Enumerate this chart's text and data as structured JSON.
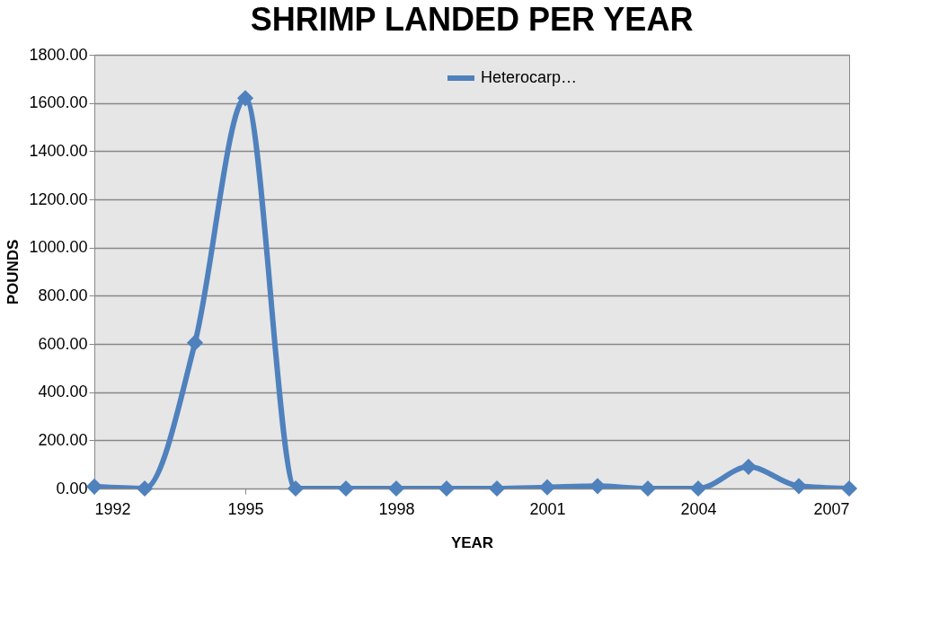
{
  "chart_data": {
    "type": "line",
    "title": "SHRIMP LANDED PER YEAR",
    "xlabel": "YEAR",
    "ylabel": "POUNDS",
    "x": [
      1992,
      1993,
      1994,
      1995,
      1996,
      1997,
      1998,
      1999,
      2000,
      2001,
      2002,
      2003,
      2004,
      2005,
      2006,
      2007
    ],
    "series": [
      {
        "name": "Heterocarp…",
        "color": "#4f81bd",
        "values": [
          8,
          0,
          605,
          1620,
          0,
          0,
          0,
          0,
          0,
          5,
          10,
          0,
          0,
          90,
          10,
          0
        ]
      }
    ],
    "xlim": [
      1992,
      2007
    ],
    "xticks": [
      1992,
      1995,
      1998,
      2001,
      2004,
      2007
    ],
    "ylim": [
      0,
      1800
    ],
    "yticks": [
      {
        "value": 0,
        "label": "0.00"
      },
      {
        "value": 200,
        "label": "200.00"
      },
      {
        "value": 400,
        "label": "400.00"
      },
      {
        "value": 600,
        "label": "600.00"
      },
      {
        "value": 800,
        "label": "800.00"
      },
      {
        "value": 1000,
        "label": "1000.00"
      },
      {
        "value": 1200,
        "label": "1200.00"
      },
      {
        "value": 1400,
        "label": "1400.00"
      },
      {
        "value": 1600,
        "label": "1600.00"
      },
      {
        "value": 1800,
        "label": "1800.00"
      }
    ],
    "grid": "y",
    "legend": "top",
    "marker": "diamond",
    "line_style": "solid"
  }
}
